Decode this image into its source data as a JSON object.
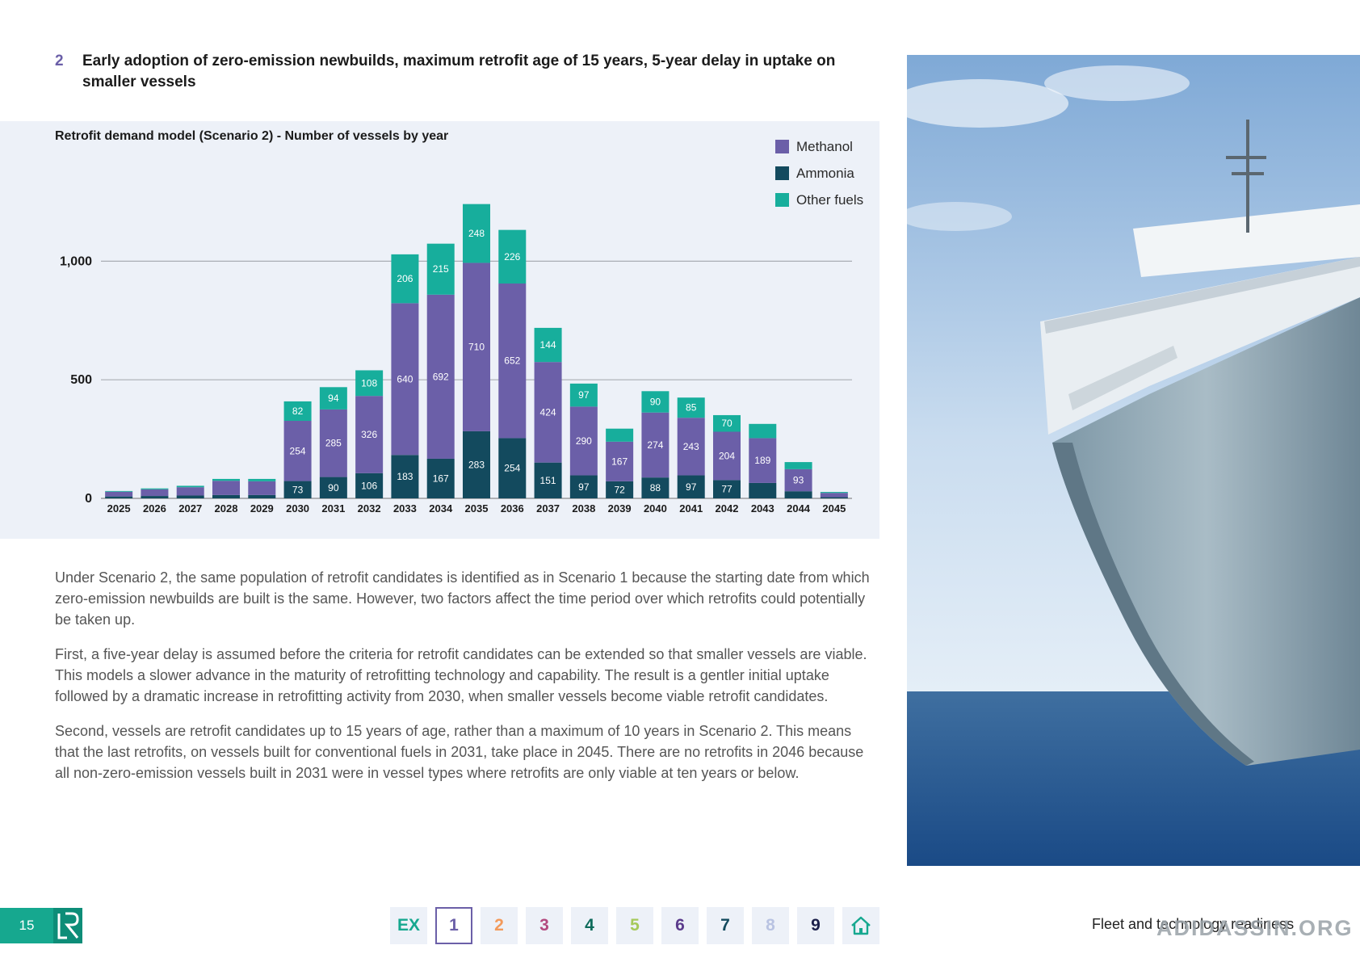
{
  "section": {
    "number": "2",
    "title": "Early adoption of zero-emission newbuilds, maximum retrofit age of 15 years, 5-year delay in uptake on smaller vessels"
  },
  "chart_data": {
    "type": "bar",
    "stacked": true,
    "title": "Retrofit demand model (Scenario 2) - Number of vessels by year",
    "xlabel": "",
    "ylabel": "",
    "ylim": [
      0,
      1250
    ],
    "yticks": [
      0,
      500,
      1000
    ],
    "ytick_labels": [
      "0",
      "500",
      "1,000"
    ],
    "grid": true,
    "legend_position": "top-right",
    "categories": [
      "2025",
      "2026",
      "2027",
      "2028",
      "2029",
      "2030",
      "2031",
      "2032",
      "2033",
      "2034",
      "2035",
      "2036",
      "2037",
      "2038",
      "2039",
      "2040",
      "2041",
      "2042",
      "2043",
      "2044",
      "2045"
    ],
    "series": [
      {
        "name": "Ammonia",
        "color": "#134a5e",
        "values": [
          8,
          10,
          12,
          14,
          14,
          73,
          90,
          106,
          183,
          167,
          283,
          254,
          151,
          97,
          72,
          88,
          97,
          77,
          65,
          30,
          5
        ]
      },
      {
        "name": "Methanol",
        "color": "#6b5fa8",
        "values": [
          20,
          28,
          35,
          60,
          58,
          254,
          285,
          326,
          640,
          692,
          710,
          652,
          424,
          290,
          167,
          274,
          243,
          204,
          189,
          93,
          18
        ]
      },
      {
        "name": "Other fuels",
        "color": "#17ae9c",
        "values": [
          3,
          4,
          6,
          8,
          10,
          82,
          94,
          108,
          206,
          215,
          248,
          226,
          144,
          97,
          55,
          90,
          85,
          70,
          60,
          30,
          4
        ]
      }
    ],
    "labels": {
      "Ammonia": [
        null,
        null,
        null,
        null,
        null,
        "73",
        "90",
        "106",
        "183",
        "167",
        "283",
        "254",
        "151",
        "97",
        "72",
        "88",
        "97",
        "77",
        null,
        null,
        null
      ],
      "Methanol": [
        null,
        null,
        null,
        null,
        null,
        "254",
        "285",
        "326",
        "640",
        "692",
        "710",
        "652",
        "424",
        "290",
        "167",
        "274",
        "243",
        "204",
        "189",
        "93",
        null
      ],
      "Other fuels": [
        null,
        null,
        null,
        null,
        null,
        "82",
        "94",
        "108",
        "206",
        "215",
        "248",
        "226",
        "144",
        "97",
        null,
        "90",
        "85",
        "70",
        null,
        null,
        null
      ]
    }
  },
  "body": {
    "p1": "Under Scenario 2, the same population of retrofit candidates is identified as in Scenario 1 because the starting date from which zero-emission newbuilds are built is the same. However, two factors affect the time period over which retrofits could potentially be taken up.",
    "p2": "First, a five-year delay is assumed before the criteria for retrofit candidates can be extended so that smaller vessels are viable. This models a slower advance in the maturity of retrofitting technology and capability. The result is a gentler initial uptake followed by a dramatic increase in retrofitting activity from 2030, when smaller vessels become viable retrofit candidates.",
    "p3": "Second, vessels are retrofit candidates up to 15 years of age, rather than a maximum of 10 years in Scenario 2.  This means that the last retrofits, on vessels built for conventional fuels in 2031, take place in 2045. There are no retrofits in 2046 because all non-zero-emission vessels built in 2031 were in vessel types where retrofits are only viable at ten years or below."
  },
  "footer": {
    "page_number": "15",
    "nav": [
      {
        "label": "EX",
        "color": "#16a88f"
      },
      {
        "label": "1",
        "color": "#6b5fa8",
        "active": true
      },
      {
        "label": "2",
        "color": "#f39a5b"
      },
      {
        "label": "3",
        "color": "#b34a7f"
      },
      {
        "label": "4",
        "color": "#0e6b5b"
      },
      {
        "label": "5",
        "color": "#a5c95a"
      },
      {
        "label": "6",
        "color": "#5b3b8c"
      },
      {
        "label": "7",
        "color": "#134a5e"
      },
      {
        "label": "8",
        "color": "#b9c3e2"
      },
      {
        "label": "9",
        "color": "#1b1f4a"
      }
    ],
    "home_icon": "home-icon",
    "section_name": "Fleet and technology readiness",
    "watermark": "ADIDASSIN.ORG"
  }
}
